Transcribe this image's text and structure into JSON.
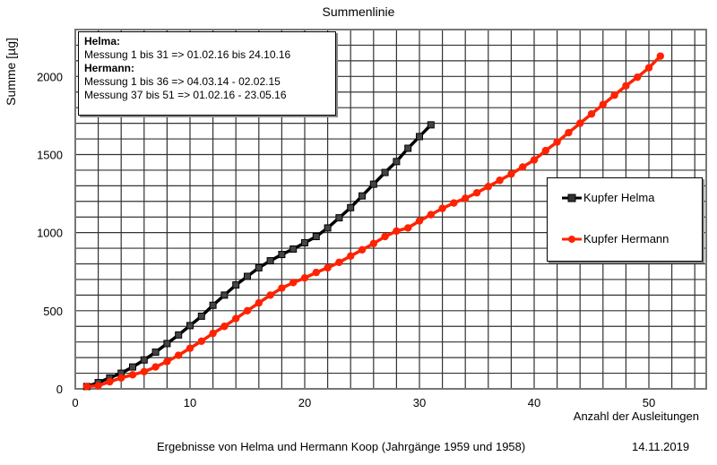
{
  "chart_data": {
    "type": "line",
    "title": "Summenlinie",
    "xlabel": "Anzahl der Ausleitungen",
    "ylabel": "Summe [µg]",
    "xlim": [
      0,
      55
    ],
    "ylim": [
      0,
      2300
    ],
    "xticks": [
      0,
      10,
      20,
      30,
      40,
      50
    ],
    "yticks": [
      0,
      500,
      1000,
      1500,
      2000
    ],
    "grid": true,
    "legend_position": "right",
    "series": [
      {
        "name": "Kupfer Helma",
        "color": "#000000",
        "marker": "square",
        "x": [
          1,
          2,
          3,
          4,
          5,
          6,
          7,
          8,
          9,
          10,
          11,
          12,
          13,
          14,
          15,
          16,
          17,
          18,
          19,
          20,
          21,
          22,
          23,
          24,
          25,
          26,
          27,
          28,
          29,
          30,
          31
        ],
        "values": [
          15,
          40,
          70,
          100,
          140,
          185,
          235,
          290,
          345,
          405,
          465,
          535,
          600,
          665,
          720,
          775,
          820,
          860,
          895,
          935,
          975,
          1030,
          1095,
          1160,
          1235,
          1310,
          1385,
          1455,
          1540,
          1615,
          1690
        ]
      },
      {
        "name": "Kupfer Hermann",
        "color": "#ff2200",
        "marker": "circle",
        "x": [
          1,
          2,
          3,
          4,
          5,
          6,
          7,
          8,
          9,
          10,
          11,
          12,
          13,
          14,
          15,
          16,
          17,
          18,
          19,
          20,
          21,
          22,
          23,
          24,
          25,
          26,
          27,
          28,
          29,
          30,
          31,
          32,
          33,
          34,
          35,
          36,
          37,
          38,
          39,
          40,
          41,
          42,
          43,
          44,
          45,
          46,
          47,
          48,
          49,
          50,
          51
        ],
        "values": [
          15,
          20,
          45,
          70,
          90,
          110,
          140,
          175,
          215,
          260,
          305,
          355,
          400,
          450,
          500,
          550,
          600,
          645,
          680,
          710,
          745,
          775,
          810,
          850,
          890,
          930,
          975,
          1010,
          1030,
          1075,
          1115,
          1155,
          1190,
          1220,
          1255,
          1295,
          1335,
          1375,
          1420,
          1465,
          1525,
          1580,
          1640,
          1700,
          1760,
          1820,
          1880,
          1940,
          1995,
          2055,
          2130
        ]
      }
    ]
  },
  "info": {
    "helma_heading": "Helma:",
    "helma_line": "Messung 1 bis 31 => 01.02.16 bis 24.10.16",
    "hermann_heading": "Hermann:",
    "hermann_line1": "Messung 1 bis 36 => 04.03.14 - 02.02.15",
    "hermann_line2": "Messung 37 bis 51 => 01.02.16 - 23.05.16"
  },
  "footer": "Ergebnisse von Helma und Hermann Koop (Jahrgänge 1959 und 1958)",
  "date": "14.11.2019"
}
